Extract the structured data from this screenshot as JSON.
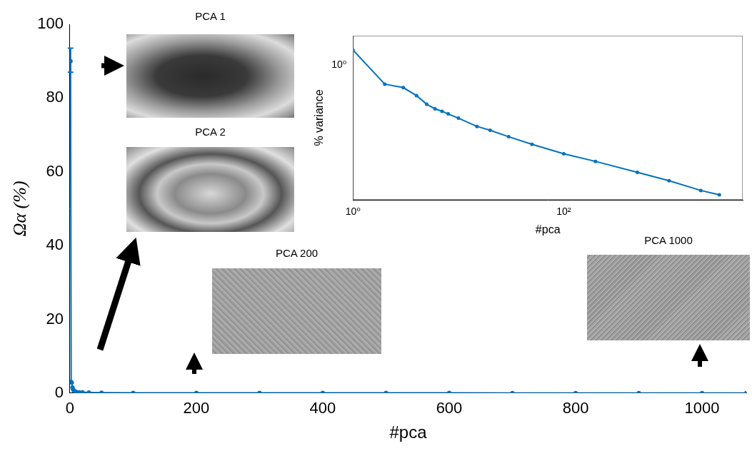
{
  "chart_data": [
    {
      "type": "line",
      "x_label": "#pca",
      "y_label": "Ωα (%)",
      "x": [
        1,
        2,
        3,
        4,
        5,
        6,
        8,
        10,
        15,
        20,
        30,
        50,
        100,
        200,
        300,
        400,
        500,
        600,
        700,
        800,
        900,
        1000,
        1070
      ],
      "series": [
        {
          "name": "Ωα",
          "color": "#0072bd",
          "marker": "o",
          "values": [
            90,
            3,
            2.8,
            1.5,
            1,
            0.7,
            0.5,
            0.3,
            0.2,
            0.2,
            0.15,
            0.1,
            0.08,
            0.06,
            0.05,
            0.05,
            0.04,
            0.04,
            0.03,
            0.03,
            0.03,
            0.02,
            0.02
          ],
          "error_low": [
            87,
            null,
            null,
            null,
            null,
            null,
            null,
            null,
            null,
            null,
            null,
            null,
            null,
            null,
            null,
            null,
            null,
            null,
            null,
            null,
            null,
            null,
            null
          ],
          "error_high": [
            93.5,
            null,
            null,
            null,
            null,
            null,
            null,
            null,
            null,
            null,
            null,
            null,
            null,
            null,
            null,
            null,
            null,
            null,
            null,
            null,
            null,
            null,
            null
          ]
        }
      ],
      "xlim": [
        0,
        1070
      ],
      "xticks": [
        0,
        200,
        400,
        600,
        800,
        1000
      ],
      "ylim": [
        0,
        100
      ],
      "yticks": [
        0,
        20,
        40,
        60,
        80,
        100
      ],
      "grid": false,
      "annotations": [
        "PCA 1",
        "PCA 2",
        "PCA 200",
        "PCA 1000"
      ]
    },
    {
      "type": "line",
      "x_label": "#pca",
      "y_label": "% variance",
      "log": true,
      "x": [
        1,
        2,
        3,
        4,
        5,
        6,
        7,
        8,
        10,
        15,
        20,
        30,
        50,
        100,
        200,
        500,
        1000,
        2000,
        3000
      ],
      "series": [
        {
          "name": "% variance",
          "color": "#0072bd",
          "marker": "o",
          "values": [
            1.42,
            0.63,
            0.58,
            0.48,
            0.39,
            0.35,
            0.33,
            0.31,
            0.28,
            0.23,
            0.21,
            0.18,
            0.15,
            0.12,
            0.1,
            0.077,
            0.063,
            0.05,
            0.045
          ]
        }
      ],
      "xlim": [
        1,
        5000
      ],
      "xticks": [
        {
          "value": 1,
          "label": "10⁰"
        },
        {
          "value": 100,
          "label": "10²"
        }
      ],
      "ylim": [
        0.04,
        2
      ],
      "yticks": [
        {
          "value": 1,
          "label": "10⁰"
        }
      ],
      "grid": false
    }
  ]
}
